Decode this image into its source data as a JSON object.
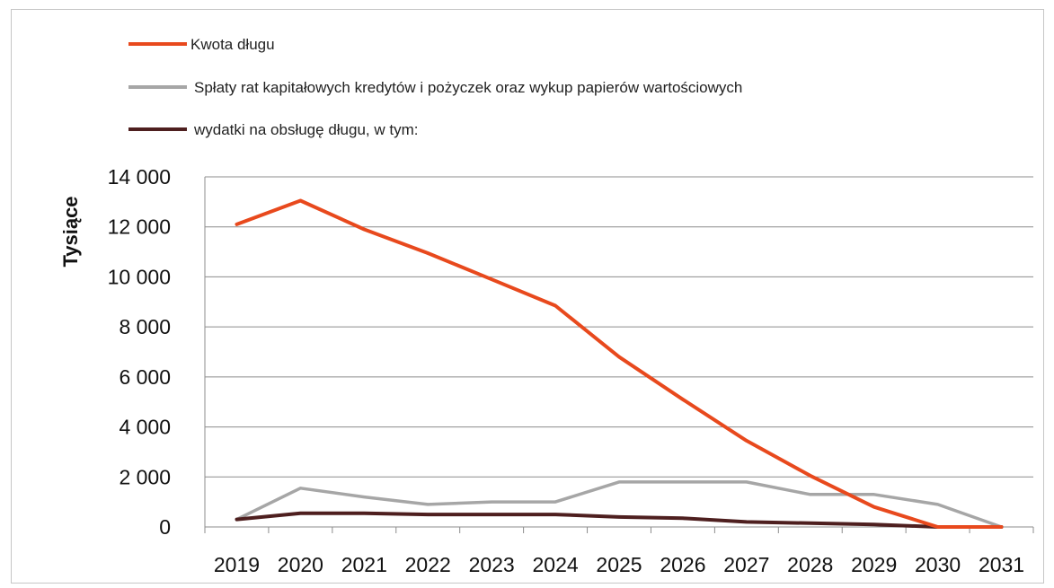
{
  "chart_data": {
    "type": "line",
    "title": "",
    "xlabel": "",
    "ylabel": "Tysiące",
    "x": [
      "2019",
      "2020",
      "2021",
      "2022",
      "2023",
      "2024",
      "2025",
      "2026",
      "2027",
      "2028",
      "2029",
      "2030",
      "2031"
    ],
    "ylim": [
      0,
      14000
    ],
    "y_ticks": [
      0,
      2000,
      4000,
      6000,
      8000,
      10000,
      12000,
      14000
    ],
    "y_tick_labels": [
      "0",
      "2 000",
      "4 000",
      "6 000",
      "8 000",
      "10 000",
      "12 000",
      "14 000"
    ],
    "grid": true,
    "legend": "top-left",
    "series": [
      {
        "name": "Kwota długu",
        "color": "#e8491d",
        "values": [
          12100,
          13050,
          11900,
          10950,
          9900,
          8850,
          6800,
          5100,
          3450,
          2050,
          800,
          0,
          0
        ]
      },
      {
        "name": "Spłaty rat kapitałowych kredytów i pożyczek oraz wykup papierów wartościowych",
        "color": "#a6a6a6",
        "values": [
          300,
          1550,
          1200,
          900,
          1000,
          1000,
          1800,
          1800,
          1800,
          1300,
          1300,
          900,
          0
        ]
      },
      {
        "name": " wydatki na obsługę długu, w tym:",
        "color": "#4e1f1f",
        "values": [
          300,
          550,
          550,
          500,
          500,
          500,
          400,
          350,
          200,
          150,
          100,
          0,
          0
        ]
      }
    ]
  }
}
